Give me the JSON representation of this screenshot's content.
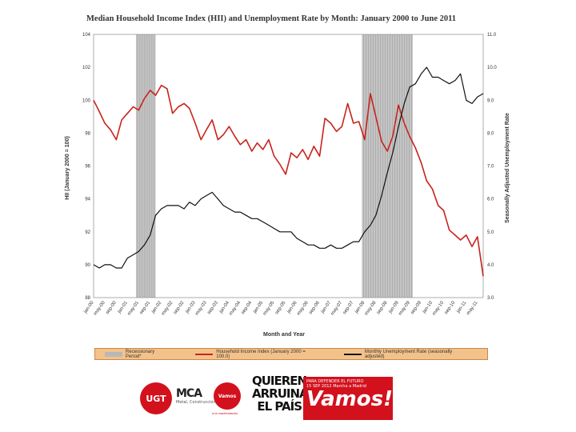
{
  "chart_data": {
    "type": "line",
    "title": "Median Household Income Index (HII) and Unemployment Rate by Month: January 2000 to June 2011",
    "xlabel": "Month and Year",
    "ylabel_left": "HII (January 2000 = 100)",
    "ylabel_right": "Seasonally Adjusted Unemployment Rate",
    "yleft_range": [
      88,
      104
    ],
    "yleft_ticks": [
      "88",
      "90",
      "92",
      "94",
      "96",
      "98",
      "100",
      "102",
      "104"
    ],
    "yright_range": [
      3.0,
      11.0
    ],
    "yright_ticks": [
      "3.0",
      "4.0",
      "5.0",
      "6.0",
      "7.0",
      "8.0",
      "9.0",
      "10.0",
      "11.0"
    ],
    "x_ticks": [
      "jan-00",
      "may-00",
      "sep-00",
      "jan-01",
      "may-01",
      "sep-01",
      "jan-02",
      "may-02",
      "sep-02",
      "jan-03",
      "may-03",
      "sep-03",
      "jan-04",
      "may-04",
      "sep-04",
      "jan-05",
      "may-05",
      "sep-05",
      "jan-06",
      "may-06",
      "sep-06",
      "jan-07",
      "may-07",
      "sep-07",
      "jan-08",
      "may-08",
      "sep-08",
      "jan-09",
      "may-09",
      "sep-09",
      "jan-10",
      "may-10",
      "sep-10",
      "jan-11",
      "may-11"
    ],
    "recessions": [
      [
        2001.25,
        2001.83
      ],
      [
        2007.92,
        2009.42
      ]
    ],
    "series": [
      {
        "name": "Household Income Index (January 2000 = 100.0)",
        "axis": "left",
        "color": "#c8231b",
        "x": [
          2000.0,
          2000.17,
          2000.33,
          2000.5,
          2000.67,
          2000.83,
          2001.0,
          2001.17,
          2001.33,
          2001.5,
          2001.67,
          2001.83,
          2002.0,
          2002.17,
          2002.33,
          2002.5,
          2002.67,
          2002.83,
          2003.0,
          2003.17,
          2003.33,
          2003.5,
          2003.67,
          2003.83,
          2004.0,
          2004.17,
          2004.33,
          2004.5,
          2004.67,
          2004.83,
          2005.0,
          2005.17,
          2005.33,
          2005.5,
          2005.67,
          2005.83,
          2006.0,
          2006.17,
          2006.33,
          2006.5,
          2006.67,
          2006.83,
          2007.0,
          2007.17,
          2007.33,
          2007.5,
          2007.67,
          2007.83,
          2008.0,
          2008.17,
          2008.33,
          2008.5,
          2008.67,
          2008.83,
          2009.0,
          2009.17,
          2009.33,
          2009.5,
          2009.67,
          2009.83,
          2010.0,
          2010.17,
          2010.33,
          2010.5,
          2010.67,
          2010.83,
          2011.0,
          2011.17,
          2011.33,
          2011.5
        ],
        "y": [
          100.0,
          99.3,
          98.6,
          98.2,
          97.6,
          98.8,
          99.2,
          99.6,
          99.4,
          100.1,
          100.6,
          100.3,
          100.9,
          100.7,
          99.2,
          99.6,
          99.8,
          99.5,
          98.6,
          97.6,
          98.2,
          98.8,
          97.6,
          97.9,
          98.4,
          97.8,
          97.3,
          97.6,
          96.9,
          97.4,
          97.0,
          97.6,
          96.6,
          96.1,
          95.5,
          96.8,
          96.5,
          97.0,
          96.4,
          97.2,
          96.6,
          98.9,
          98.6,
          98.1,
          98.4,
          99.8,
          98.6,
          98.7,
          97.6,
          100.4,
          99.0,
          97.5,
          96.9,
          97.8,
          99.7,
          98.6,
          97.8,
          97.1,
          96.2,
          95.1,
          94.6,
          93.6,
          93.3,
          92.1,
          91.8,
          91.5,
          91.8,
          91.1,
          91.7,
          89.3
        ]
      },
      {
        "name": "Monthly Unemployment Rate (seasonally adjusted)",
        "axis": "right",
        "color": "#111111",
        "x": [
          2000.0,
          2000.17,
          2000.33,
          2000.5,
          2000.67,
          2000.83,
          2001.0,
          2001.17,
          2001.33,
          2001.5,
          2001.67,
          2001.83,
          2002.0,
          2002.17,
          2002.33,
          2002.5,
          2002.67,
          2002.83,
          2003.0,
          2003.17,
          2003.33,
          2003.5,
          2003.67,
          2003.83,
          2004.0,
          2004.17,
          2004.33,
          2004.5,
          2004.67,
          2004.83,
          2005.0,
          2005.17,
          2005.33,
          2005.5,
          2005.67,
          2005.83,
          2006.0,
          2006.17,
          2006.33,
          2006.5,
          2006.67,
          2006.83,
          2007.0,
          2007.17,
          2007.33,
          2007.5,
          2007.67,
          2007.83,
          2008.0,
          2008.17,
          2008.33,
          2008.5,
          2008.67,
          2008.83,
          2009.0,
          2009.17,
          2009.33,
          2009.5,
          2009.67,
          2009.83,
          2010.0,
          2010.17,
          2010.33,
          2010.5,
          2010.67,
          2010.83,
          2011.0,
          2011.17,
          2011.33,
          2011.5
        ],
        "y": [
          4.0,
          3.9,
          4.0,
          4.0,
          3.9,
          3.9,
          4.2,
          4.3,
          4.4,
          4.6,
          4.9,
          5.5,
          5.7,
          5.8,
          5.8,
          5.8,
          5.7,
          5.9,
          5.8,
          6.0,
          6.1,
          6.2,
          6.0,
          5.8,
          5.7,
          5.6,
          5.6,
          5.5,
          5.4,
          5.4,
          5.3,
          5.2,
          5.1,
          5.0,
          5.0,
          5.0,
          4.8,
          4.7,
          4.6,
          4.6,
          4.5,
          4.5,
          4.6,
          4.5,
          4.5,
          4.6,
          4.7,
          4.7,
          5.0,
          5.2,
          5.5,
          6.1,
          6.8,
          7.4,
          8.2,
          8.9,
          9.4,
          9.5,
          9.8,
          10.0,
          9.7,
          9.7,
          9.6,
          9.5,
          9.6,
          9.8,
          9.0,
          8.9,
          9.1,
          9.2
        ]
      }
    ],
    "legend": [
      "Recessionary Period*",
      "Household Income Index (January 2000 = 100.0)",
      "Monthly Unemployment Rate (seasonally adjusted)"
    ],
    "legend_position": "bottom",
    "grid": false
  },
  "logos": {
    "ugt": "UGT",
    "mca": "MCA",
    "mca_sub": "Metal, Construcción y Afines",
    "vamos_mini": "Vamos",
    "vamos_mini_sub": "a la manifestación",
    "quieren_line1": "QUIEREN",
    "quieren_line2": "ARRUINAR",
    "quieren_line3": "EL PAÍS",
    "vamos_top1": "PARA DEFENDER EL FUTURO",
    "vamos_top2": "15 SEP 2012  Marcha a Madrid",
    "vamos_word": "Vamos!"
  }
}
